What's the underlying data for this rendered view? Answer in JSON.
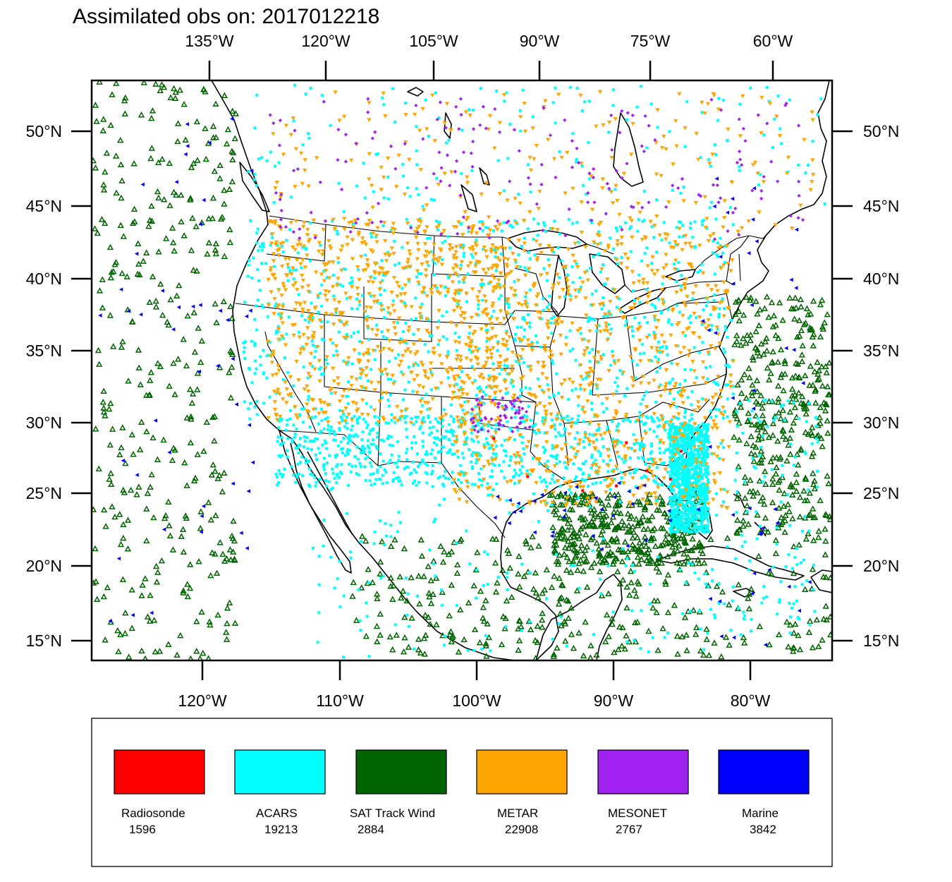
{
  "title": "Assimilated obs on: 2017012218",
  "top_axis_labels": [
    "135°W",
    "120°W",
    "105°W",
    "90°W",
    "75°W",
    "60°W"
  ],
  "bottom_axis_labels": [
    "120°W",
    "110°W",
    "100°W",
    "90°W",
    "80°W"
  ],
  "left_axis_labels": [
    "50°N",
    "45°N",
    "40°N",
    "35°N",
    "30°N",
    "25°N",
    "20°N",
    "15°N"
  ],
  "right_axis_labels": [
    "50°N",
    "45°N",
    "40°N",
    "35°N",
    "30°N",
    "25°N",
    "20°N",
    "15°N"
  ],
  "colors": {
    "radiosonde": "#ff0000",
    "acars": "#00ffff",
    "sat_track_wind": "#006400",
    "metar": "#ffa500",
    "mesonet": "#a020f0",
    "marine": "#0000ff",
    "land_outline": "#000000"
  },
  "legend": [
    {
      "key": "radiosonde",
      "label": "Radiosonde",
      "count": "1596",
      "color": "#ff0000"
    },
    {
      "key": "acars",
      "label": "ACARS",
      "count": "19213",
      "color": "#00ffff"
    },
    {
      "key": "sat_track_wind",
      "label": "SAT Track Wind",
      "count": "2884",
      "color": "#006400"
    },
    {
      "key": "metar",
      "label": "METAR",
      "count": "22908",
      "color": "#ffa500"
    },
    {
      "key": "mesonet",
      "label": "MESONET",
      "count": "2767",
      "color": "#a020f0"
    },
    {
      "key": "marine",
      "label": "Marine",
      "count": "3842",
      "color": "#0000ff"
    }
  ]
}
